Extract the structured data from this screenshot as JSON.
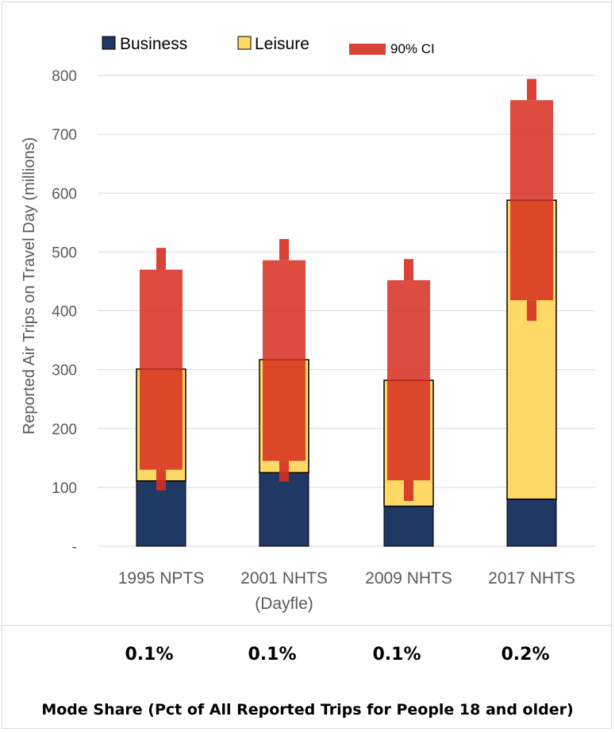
{
  "chart_data": {
    "type": "bar",
    "stacked": true,
    "categories": [
      "1995 NPTS",
      "2001 NHTS\n(Dayfle)",
      "2009 NHTS",
      "2017 NHTS"
    ],
    "series": [
      {
        "name": "Business",
        "color": "#203864",
        "values": [
          111,
          125,
          68,
          80
        ]
      },
      {
        "name": "Leisure",
        "color": "#ffd966",
        "values": [
          190,
          192,
          214,
          508
        ]
      }
    ],
    "totals": [
      301,
      317,
      282,
      588
    ],
    "ci_90": {
      "name": "90% CI",
      "color": "#d62d20",
      "business": [
        [
          95,
          130
        ],
        [
          110,
          145
        ],
        [
          77,
          112
        ],
        [
          null,
          null
        ]
      ],
      "total": [
        [
          470,
          507
        ],
        [
          486,
          522
        ],
        [
          452,
          488
        ],
        [
          758,
          794
        ]
      ],
      "total_lower": [
        null,
        null,
        null,
        [
          383,
          418
        ]
      ]
    },
    "ylabel": "Reported Air Trips on Travel Day (millions)",
    "ylim": [
      0,
      800
    ],
    "yticks": [
      0,
      100,
      200,
      300,
      400,
      500,
      600,
      700,
      800
    ],
    "ytick_labels": [
      "-",
      "100",
      "200",
      "300",
      "400",
      "500",
      "600",
      "700",
      "800"
    ],
    "grid": true,
    "legend_position": "top"
  },
  "mode_share": {
    "values": [
      "0.1%",
      "0.1%",
      "0.1%",
      "0.2%"
    ],
    "caption": "Mode Share (Pct of All Reported Trips for People 18 and older)"
  }
}
